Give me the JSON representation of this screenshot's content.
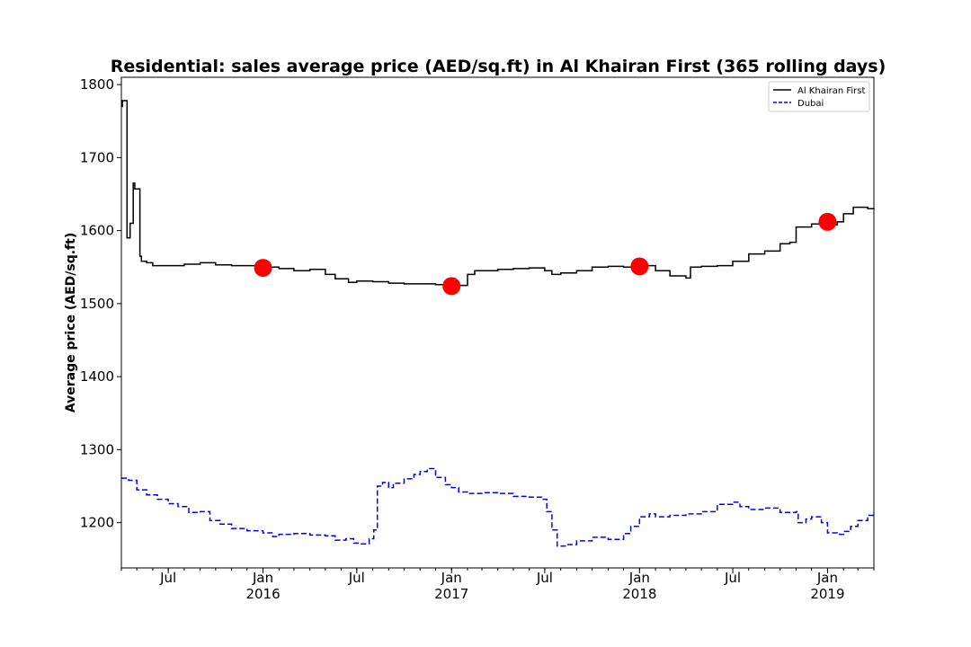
{
  "chart_data": {
    "type": "line",
    "title": "Residential: sales average price (AED/sq.ft) in Al Khairan First (365 rolling days)",
    "ylabel": "Average price (AED/sq.ft)",
    "xlabel": "",
    "ylim": [
      1138,
      1810
    ],
    "xlim": [
      "2015-04-01",
      "2019-04-01"
    ],
    "y_ticks": [
      1200,
      1300,
      1400,
      1500,
      1600,
      1700,
      1800
    ],
    "x_ticks": [
      {
        "date": "2015-07-01",
        "label": "Jul",
        "year": ""
      },
      {
        "date": "2016-01-01",
        "label": "Jan",
        "year": "2016"
      },
      {
        "date": "2016-07-01",
        "label": "Jul",
        "year": ""
      },
      {
        "date": "2017-01-01",
        "label": "Jan",
        "year": "2017"
      },
      {
        "date": "2017-07-01",
        "label": "Jul",
        "year": ""
      },
      {
        "date": "2018-01-01",
        "label": "Jan",
        "year": "2018"
      },
      {
        "date": "2018-07-01",
        "label": "Jul",
        "year": ""
      },
      {
        "date": "2019-01-01",
        "label": "Jan",
        "year": "2019"
      }
    ],
    "legend_position": "top-right",
    "series": [
      {
        "name": "Al Khairan First",
        "color": "#000000",
        "style": "solid",
        "points": [
          [
            "2015-04-01",
            1770
          ],
          [
            "2015-04-03",
            1778
          ],
          [
            "2015-04-10",
            1778
          ],
          [
            "2015-04-12",
            1590
          ],
          [
            "2015-04-16",
            1590
          ],
          [
            "2015-04-18",
            1610
          ],
          [
            "2015-04-22",
            1610
          ],
          [
            "2015-04-24",
            1665
          ],
          [
            "2015-04-27",
            1657
          ],
          [
            "2015-05-03",
            1657
          ],
          [
            "2015-05-07",
            1565
          ],
          [
            "2015-05-10",
            1558
          ],
          [
            "2015-05-20",
            1556
          ],
          [
            "2015-06-01",
            1552
          ],
          [
            "2015-07-01",
            1552
          ],
          [
            "2015-08-01",
            1554
          ],
          [
            "2015-09-01",
            1556
          ],
          [
            "2015-10-01",
            1553
          ],
          [
            "2015-11-01",
            1552
          ],
          [
            "2016-01-01",
            1550
          ],
          [
            "2016-02-01",
            1548
          ],
          [
            "2016-03-01",
            1545
          ],
          [
            "2016-04-01",
            1547
          ],
          [
            "2016-05-01",
            1540
          ],
          [
            "2016-05-20",
            1534
          ],
          [
            "2016-06-15",
            1529
          ],
          [
            "2016-07-01",
            1531
          ],
          [
            "2016-08-01",
            1530
          ],
          [
            "2016-09-01",
            1528
          ],
          [
            "2016-10-01",
            1527
          ],
          [
            "2016-11-01",
            1527
          ],
          [
            "2016-12-01",
            1526
          ],
          [
            "2017-01-01",
            1525
          ],
          [
            "2017-01-15",
            1525
          ],
          [
            "2017-02-01",
            1540
          ],
          [
            "2017-02-15",
            1545
          ],
          [
            "2017-04-01",
            1547
          ],
          [
            "2017-05-01",
            1548
          ],
          [
            "2017-06-01",
            1549
          ],
          [
            "2017-07-01",
            1545
          ],
          [
            "2017-07-15",
            1540
          ],
          [
            "2017-08-01",
            1542
          ],
          [
            "2017-09-01",
            1545
          ],
          [
            "2017-10-01",
            1550
          ],
          [
            "2017-11-01",
            1551
          ],
          [
            "2017-12-01",
            1550
          ],
          [
            "2018-01-01",
            1552
          ],
          [
            "2018-02-01",
            1545
          ],
          [
            "2018-03-01",
            1538
          ],
          [
            "2018-04-01",
            1535
          ],
          [
            "2018-04-10",
            1550
          ],
          [
            "2018-05-01",
            1551
          ],
          [
            "2018-06-01",
            1552
          ],
          [
            "2018-07-01",
            1558
          ],
          [
            "2018-08-01",
            1568
          ],
          [
            "2018-09-01",
            1572
          ],
          [
            "2018-10-01",
            1582
          ],
          [
            "2018-10-20",
            1584
          ],
          [
            "2018-11-01",
            1605
          ],
          [
            "2018-12-01",
            1609
          ],
          [
            "2019-01-01",
            1608
          ],
          [
            "2019-01-20",
            1612
          ],
          [
            "2019-02-01",
            1623
          ],
          [
            "2019-02-20",
            1632
          ],
          [
            "2019-03-10",
            1632
          ],
          [
            "2019-03-20",
            1630
          ],
          [
            "2019-04-01",
            1629
          ]
        ]
      },
      {
        "name": "Dubai",
        "color": "#0000ff",
        "style": "dashed",
        "points": [
          [
            "2015-04-01",
            1261
          ],
          [
            "2015-04-15",
            1258
          ],
          [
            "2015-05-01",
            1245
          ],
          [
            "2015-05-20",
            1238
          ],
          [
            "2015-06-10",
            1232
          ],
          [
            "2015-07-01",
            1226
          ],
          [
            "2015-07-20",
            1222
          ],
          [
            "2015-08-10",
            1214
          ],
          [
            "2015-09-01",
            1215
          ],
          [
            "2015-09-20",
            1203
          ],
          [
            "2015-10-10",
            1198
          ],
          [
            "2015-11-01",
            1192
          ],
          [
            "2015-12-01",
            1189
          ],
          [
            "2016-01-01",
            1186
          ],
          [
            "2016-01-20",
            1181
          ],
          [
            "2016-02-01",
            1184
          ],
          [
            "2016-03-01",
            1185
          ],
          [
            "2016-04-01",
            1183
          ],
          [
            "2016-05-01",
            1182
          ],
          [
            "2016-05-20",
            1176
          ],
          [
            "2016-06-10",
            1178
          ],
          [
            "2016-06-25",
            1172
          ],
          [
            "2016-07-10",
            1171
          ],
          [
            "2016-07-25",
            1178
          ],
          [
            "2016-08-03",
            1190
          ],
          [
            "2016-08-10",
            1250
          ],
          [
            "2016-08-20",
            1255
          ],
          [
            "2016-09-01",
            1248
          ],
          [
            "2016-09-10",
            1254
          ],
          [
            "2016-10-01",
            1260
          ],
          [
            "2016-10-20",
            1266
          ],
          [
            "2016-11-01",
            1270
          ],
          [
            "2016-11-15",
            1274
          ],
          [
            "2016-12-01",
            1262
          ],
          [
            "2016-12-20",
            1252
          ],
          [
            "2017-01-01",
            1248
          ],
          [
            "2017-01-15",
            1242
          ],
          [
            "2017-02-01",
            1240
          ],
          [
            "2017-03-01",
            1241
          ],
          [
            "2017-04-01",
            1240
          ],
          [
            "2017-05-01",
            1236
          ],
          [
            "2017-06-01",
            1235
          ],
          [
            "2017-06-25",
            1232
          ],
          [
            "2017-07-05",
            1215
          ],
          [
            "2017-07-15",
            1190
          ],
          [
            "2017-07-25",
            1168
          ],
          [
            "2017-08-15",
            1170
          ],
          [
            "2017-09-01",
            1175
          ],
          [
            "2017-10-01",
            1180
          ],
          [
            "2017-11-01",
            1177
          ],
          [
            "2017-12-01",
            1185
          ],
          [
            "2017-12-15",
            1195
          ],
          [
            "2018-01-01",
            1208
          ],
          [
            "2018-01-20",
            1212
          ],
          [
            "2018-02-01",
            1208
          ],
          [
            "2018-03-01",
            1210
          ],
          [
            "2018-04-01",
            1212
          ],
          [
            "2018-05-01",
            1215
          ],
          [
            "2018-06-01",
            1225
          ],
          [
            "2018-07-01",
            1228
          ],
          [
            "2018-07-15",
            1222
          ],
          [
            "2018-08-01",
            1218
          ],
          [
            "2018-09-01",
            1220
          ],
          [
            "2018-10-01",
            1214
          ],
          [
            "2018-11-01",
            1215
          ],
          [
            "2018-11-05",
            1200
          ],
          [
            "2018-11-20",
            1205
          ],
          [
            "2018-12-01",
            1208
          ],
          [
            "2018-12-20",
            1200
          ],
          [
            "2019-01-01",
            1186
          ],
          [
            "2019-01-20",
            1184
          ],
          [
            "2019-02-01",
            1188
          ],
          [
            "2019-02-15",
            1195
          ],
          [
            "2019-03-01",
            1203
          ],
          [
            "2019-03-20",
            1210
          ],
          [
            "2019-04-01",
            1214
          ]
        ]
      }
    ],
    "markers": [
      {
        "date": "2016-01-01",
        "value": 1549,
        "color": "#ff0000"
      },
      {
        "date": "2017-01-01",
        "value": 1524,
        "color": "#ff0000"
      },
      {
        "date": "2018-01-01",
        "value": 1551,
        "color": "#ff0000"
      },
      {
        "date": "2019-01-01",
        "value": 1612,
        "color": "#ff0000"
      }
    ]
  }
}
